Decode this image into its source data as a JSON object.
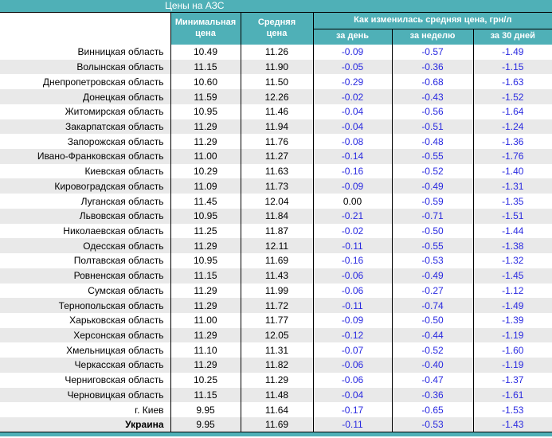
{
  "colors": {
    "accent_teal": "#4fb0b7",
    "row_stripe": "#e9e9e9",
    "negative_value": "#2a2ae0",
    "border": "#000000",
    "header_text": "#ffffff"
  },
  "header": {
    "title": "Цены на АЗС",
    "col_min": "Минимальная\nцена",
    "col_avg": "Средняя\nцена",
    "group": "Как изменилась средняя цена, грн/л",
    "sub_day": "за день",
    "sub_week": "за неделю",
    "sub_30": "за 30 дней"
  },
  "chart_data": {
    "type": "table",
    "title": "Цены на АЗС",
    "columns": [
      "",
      "Минимальная цена",
      "Средняя цена",
      "за день",
      "за неделю",
      "за 30 дней"
    ],
    "group_header": "Как изменилась средняя цена, грн/л",
    "group_header_spans": [
      "за день",
      "за неделю",
      "за 30 дней"
    ],
    "rows": [
      {
        "name": "Винницкая область",
        "min": "10.49",
        "avg": "11.26",
        "day": "-0.09",
        "week": "-0.57",
        "days30": "-1.49"
      },
      {
        "name": "Волынская область",
        "min": "11.15",
        "avg": "11.90",
        "day": "-0.05",
        "week": "-0.36",
        "days30": "-1.15"
      },
      {
        "name": "Днепропетровская область",
        "min": "10.60",
        "avg": "11.50",
        "day": "-0.29",
        "week": "-0.68",
        "days30": "-1.63"
      },
      {
        "name": "Донецкая область",
        "min": "11.59",
        "avg": "12.26",
        "day": "-0.02",
        "week": "-0.43",
        "days30": "-1.52"
      },
      {
        "name": "Житомирская область",
        "min": "10.95",
        "avg": "11.46",
        "day": "-0.04",
        "week": "-0.56",
        "days30": "-1.64"
      },
      {
        "name": "Закарпатская область",
        "min": "11.29",
        "avg": "11.94",
        "day": "-0.04",
        "week": "-0.51",
        "days30": "-1.24"
      },
      {
        "name": "Запорожская область",
        "min": "11.29",
        "avg": "11.76",
        "day": "-0.08",
        "week": "-0.48",
        "days30": "-1.36"
      },
      {
        "name": "Ивано-Франковская область",
        "min": "11.00",
        "avg": "11.27",
        "day": "-0.14",
        "week": "-0.55",
        "days30": "-1.76"
      },
      {
        "name": "Киевская область",
        "min": "10.29",
        "avg": "11.63",
        "day": "-0.16",
        "week": "-0.52",
        "days30": "-1.40"
      },
      {
        "name": "Кировоградская область",
        "min": "11.09",
        "avg": "11.73",
        "day": "-0.09",
        "week": "-0.49",
        "days30": "-1.31"
      },
      {
        "name": "Луганская область",
        "min": "11.45",
        "avg": "12.04",
        "day": "0.00",
        "week": "-0.59",
        "days30": "-1.35"
      },
      {
        "name": "Львовская область",
        "min": "10.95",
        "avg": "11.84",
        "day": "-0.21",
        "week": "-0.71",
        "days30": "-1.51"
      },
      {
        "name": "Николаевская область",
        "min": "11.25",
        "avg": "11.87",
        "day": "-0.02",
        "week": "-0.50",
        "days30": "-1.44"
      },
      {
        "name": "Одесская область",
        "min": "11.29",
        "avg": "12.11",
        "day": "-0.11",
        "week": "-0.55",
        "days30": "-1.38"
      },
      {
        "name": "Полтавская область",
        "min": "10.95",
        "avg": "11.69",
        "day": "-0.16",
        "week": "-0.53",
        "days30": "-1.32"
      },
      {
        "name": "Ровненская область",
        "min": "11.15",
        "avg": "11.43",
        "day": "-0.06",
        "week": "-0.49",
        "days30": "-1.45"
      },
      {
        "name": "Сумская область",
        "min": "11.29",
        "avg": "11.99",
        "day": "-0.06",
        "week": "-0.27",
        "days30": "-1.12"
      },
      {
        "name": "Тернопольская область",
        "min": "11.29",
        "avg": "11.72",
        "day": "-0.11",
        "week": "-0.74",
        "days30": "-1.49"
      },
      {
        "name": "Харьковская область",
        "min": "11.00",
        "avg": "11.77",
        "day": "-0.09",
        "week": "-0.50",
        "days30": "-1.39"
      },
      {
        "name": "Херсонская область",
        "min": "11.29",
        "avg": "12.05",
        "day": "-0.12",
        "week": "-0.44",
        "days30": "-1.19"
      },
      {
        "name": "Хмельницкая область",
        "min": "11.10",
        "avg": "11.31",
        "day": "-0.07",
        "week": "-0.52",
        "days30": "-1.60"
      },
      {
        "name": "Черкасская область",
        "min": "11.29",
        "avg": "11.82",
        "day": "-0.06",
        "week": "-0.40",
        "days30": "-1.19"
      },
      {
        "name": "Черниговская область",
        "min": "10.25",
        "avg": "11.29",
        "day": "-0.06",
        "week": "-0.47",
        "days30": "-1.37"
      },
      {
        "name": "Черновицкая область",
        "min": "11.15",
        "avg": "11.48",
        "day": "-0.04",
        "week": "-0.36",
        "days30": "-1.61"
      },
      {
        "name": "г. Киев",
        "min": "9.95",
        "avg": "11.64",
        "day": "-0.17",
        "week": "-0.65",
        "days30": "-1.53"
      },
      {
        "name": "Украина",
        "min": "9.95",
        "avg": "11.69",
        "day": "-0.11",
        "week": "-0.53",
        "days30": "-1.43"
      }
    ]
  }
}
